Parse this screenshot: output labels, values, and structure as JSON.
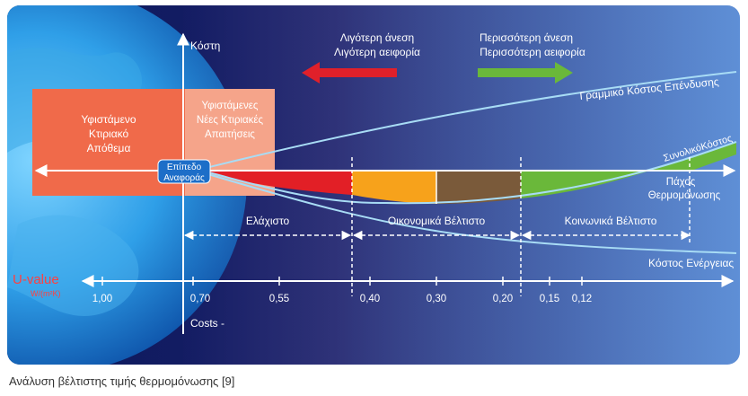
{
  "diagram": {
    "y_axis_top_label": "Κόστη",
    "y_axis_bottom_label": "Costs -",
    "arrow_left": {
      "line1": "Λιγότερη άνεση",
      "line2": "Λιγότερη αειφορία",
      "color": "#e0202a"
    },
    "arrow_right": {
      "line1": "Περισσότερη άνεση",
      "line2": "Περισσότερη αειφορία",
      "color": "#6ab83a"
    },
    "box_existing": {
      "line1": "Υφιστάμενο",
      "line2": "Κτιριακό",
      "line3": "Απόθεμα",
      "color": "#f06a4a"
    },
    "box_requirements": {
      "line1": "Υφιστάμενες",
      "line2": "Νέες Κτιριακές",
      "line3": "Απαιτήσεις",
      "color": "#f5a48a"
    },
    "reference_point": {
      "line1": "Επίπεδο",
      "line2": "Αναφοράς"
    },
    "curve_investment": "Γραμμικό Κόστος Επένδυσης",
    "curve_total": "ΣυνολικόΚόστος",
    "curve_energy": "Κόστος Ενέργειας",
    "insulation_thickness": {
      "line1": "Πάχος",
      "line2": "Θερμομόνωσης"
    },
    "zones": [
      {
        "label": "Ελάχιστο",
        "color": "#e21f26"
      },
      {
        "label": "Οικονομικά Βέλτιστο",
        "color": "#f7a21b"
      },
      {
        "label": "Κοινωνικά Βέλτιστο",
        "color": "#6ab83a"
      }
    ],
    "zone_mid_color": "#7a5a3a",
    "u_value": {
      "label": "U-value",
      "unit": "W/(m²K)"
    },
    "ticks": [
      "1,00",
      "0,70",
      "0,55",
      "0,40",
      "0,30",
      "0,20",
      "0,15",
      "0,12"
    ]
  },
  "caption": "Ανάλυση βέλτιστης τιμής θερμομόνωσης [9]"
}
